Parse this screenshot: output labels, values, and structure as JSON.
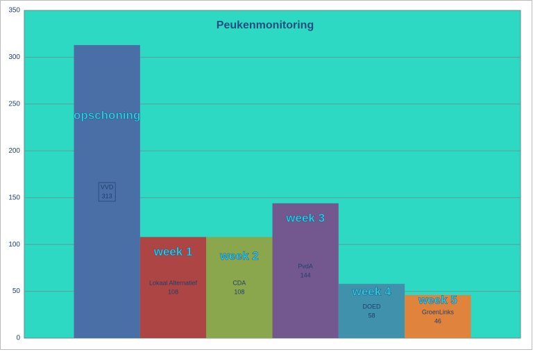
{
  "chart_data": {
    "type": "bar",
    "title": "Peukenmonitoring",
    "categories": [
      "VVD",
      "Lokaal Alternatief",
      "CDA",
      "PvdA",
      "DOED",
      "GroenLinks"
    ],
    "values": [
      313,
      108,
      108,
      144,
      58,
      46
    ],
    "colors": [
      "#4a6ea6",
      "#ad4545",
      "#8ba74d",
      "#73588f",
      "#4091ab",
      "#e0843d"
    ],
    "annotations": [
      "opschoning",
      "week 1",
      "week 2",
      "week 3",
      "week 4",
      "week 5"
    ],
    "ylim": [
      0,
      350
    ],
    "yticks": [
      0,
      50,
      100,
      150,
      200,
      250,
      300,
      350
    ],
    "grid": true
  }
}
